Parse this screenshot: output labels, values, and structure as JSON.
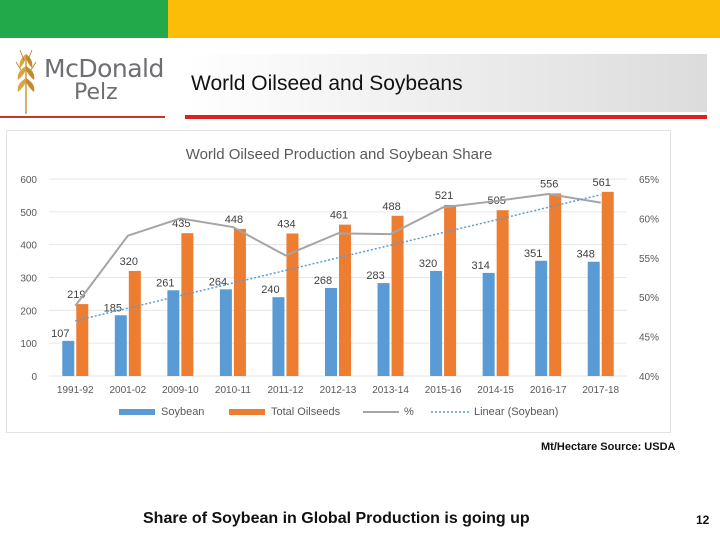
{
  "header": {
    "logo_line1": "McDonald",
    "logo_line2": "Pelz",
    "slide_title": "World Oilseed and Soybeans"
  },
  "colors": {
    "green": "#22a94a",
    "yellow": "#fbbd08",
    "soybean": "#5b9bd5",
    "oilseeds": "#ed7d31",
    "share": "#a5a5a5",
    "linear": "#5b9bd5"
  },
  "chart_data": {
    "type": "bar",
    "title": "World Oilseed Production and Soybean Share",
    "categories": [
      "1991-92",
      "2001-02",
      "2009-10",
      "2010-11",
      "2011-12",
      "2012-13",
      "2013-14",
      "2015-16",
      "2014-15",
      "2016-17",
      "2017-18"
    ],
    "series": [
      {
        "name": "Soybean",
        "values": [
          107,
          185,
          261,
          264,
          240,
          268,
          283,
          320,
          314,
          351,
          348
        ]
      },
      {
        "name": "Total Oilseeds",
        "values": [
          219,
          320,
          435,
          448,
          434,
          461,
          488,
          521,
          505,
          556,
          561
        ]
      },
      {
        "name": "%",
        "values": [
          48.9,
          57.8,
          60.0,
          58.9,
          55.3,
          58.1,
          58.0,
          61.4,
          62.2,
          63.1,
          62.0
        ]
      },
      {
        "name": "Linear (Soybean)",
        "values": [
          47,
          48.6,
          50.2,
          51.8,
          53.4,
          55,
          56.6,
          58.2,
          59.8,
          61.4,
          63
        ]
      }
    ],
    "ylim": [
      0,
      600
    ],
    "yticks": [
      "0",
      "100",
      "200",
      "300",
      "400",
      "500",
      "600"
    ],
    "y2lim": [
      40,
      65
    ],
    "y2ticks": [
      "40%",
      "45%",
      "50%",
      "55%",
      "60%",
      "65%"
    ],
    "legend": [
      "Soybean",
      "Total Oilseeds",
      "%",
      "Linear (Soybean)"
    ]
  },
  "footer": {
    "source": "Mt/Hectare Source: USDA",
    "caption": "Share of Soybean in Global Production is going up",
    "page_number": "12"
  }
}
